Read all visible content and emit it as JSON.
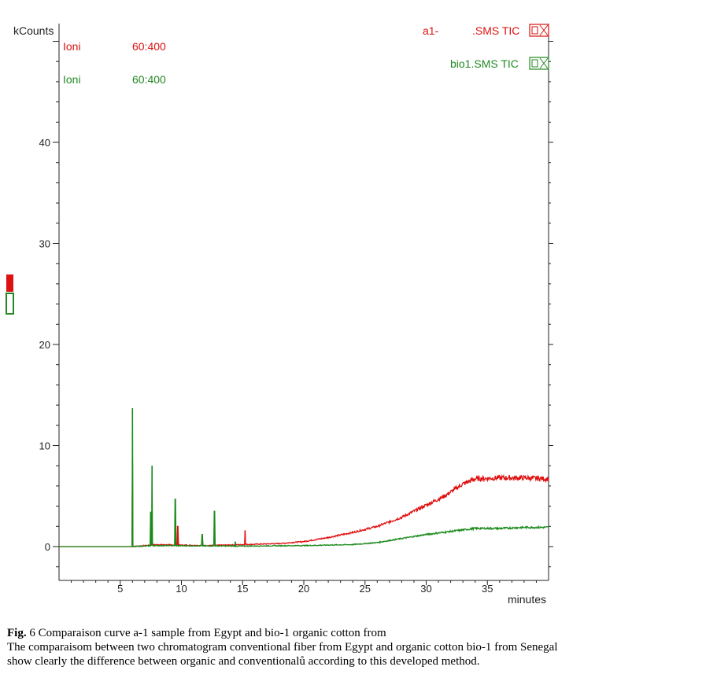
{
  "chart_data": {
    "type": "line",
    "y_unit": "kCounts",
    "x_unit": "minutes",
    "xlim": [
      0,
      40
    ],
    "ylim": [
      -3,
      52
    ],
    "x_ticks": [
      5,
      10,
      15,
      20,
      25,
      30,
      35
    ],
    "y_ticks": [
      0,
      10,
      20,
      30,
      40
    ],
    "ion_labels": [
      {
        "label": "Ioni",
        "range": "60:400",
        "color": "#dd1111"
      },
      {
        "label": "Ioni",
        "range": "60:400",
        "color": "#228822"
      }
    ],
    "legend": [
      {
        "name_a": "a1-",
        "name_b": ".SMS TIC",
        "color": "#dd1111"
      },
      {
        "name_a": "",
        "name_b": "bio1.SMS TIC",
        "color": "#228822"
      }
    ],
    "series": [
      {
        "name": "a1-.SMS TIC",
        "color": "#e01010",
        "baseline": [
          [
            0,
            0
          ],
          [
            6,
            0
          ],
          [
            8,
            0.2
          ],
          [
            12,
            0.1
          ],
          [
            15,
            0.2
          ],
          [
            18,
            0.3
          ],
          [
            20,
            0.5
          ],
          [
            22,
            0.9
          ],
          [
            24,
            1.4
          ],
          [
            26,
            2.0
          ],
          [
            28,
            2.9
          ],
          [
            30,
            4.1
          ],
          [
            31.5,
            5.0
          ],
          [
            33,
            6.2
          ],
          [
            34,
            6.7
          ],
          [
            36,
            6.8
          ],
          [
            38,
            6.8
          ],
          [
            40,
            6.7
          ]
        ],
        "peaks": [
          [
            6.0,
            8.3
          ],
          [
            7.6,
            0.5
          ],
          [
            9.5,
            0.8
          ],
          [
            9.7,
            2.0
          ],
          [
            11.7,
            0.6
          ],
          [
            12.7,
            1.0
          ],
          [
            15.2,
            1.6
          ]
        ]
      },
      {
        "name": "bio1.SMS TIC",
        "color": "#1a8a1a",
        "baseline": [
          [
            0,
            0
          ],
          [
            6,
            0
          ],
          [
            8,
            0.1
          ],
          [
            15,
            0.05
          ],
          [
            20,
            0.1
          ],
          [
            24,
            0.2
          ],
          [
            26,
            0.4
          ],
          [
            28,
            0.8
          ],
          [
            30,
            1.2
          ],
          [
            32,
            1.5
          ],
          [
            34,
            1.8
          ],
          [
            36,
            1.8
          ],
          [
            38,
            1.9
          ],
          [
            40,
            1.9
          ]
        ],
        "peaks": [
          [
            6.0,
            13.7
          ],
          [
            7.6,
            8.0
          ],
          [
            7.5,
            3.4
          ],
          [
            9.5,
            4.7
          ],
          [
            11.7,
            1.2
          ],
          [
            12.7,
            3.5
          ],
          [
            14.4,
            0.5
          ]
        ]
      }
    ]
  },
  "caption": {
    "fig_label": "Fig.",
    "fig_text": " 6  Comparaison curve a-1 sample from Egypt and bio-1 organic cotton from",
    "line2": "The comparaisom  between  two chromatogram conventional fiber  from Egypt and organic cotton bio-1 from Senegal",
    "line3": "show clearly the  difference  between  organic and conventionalů according to this  developed method."
  }
}
